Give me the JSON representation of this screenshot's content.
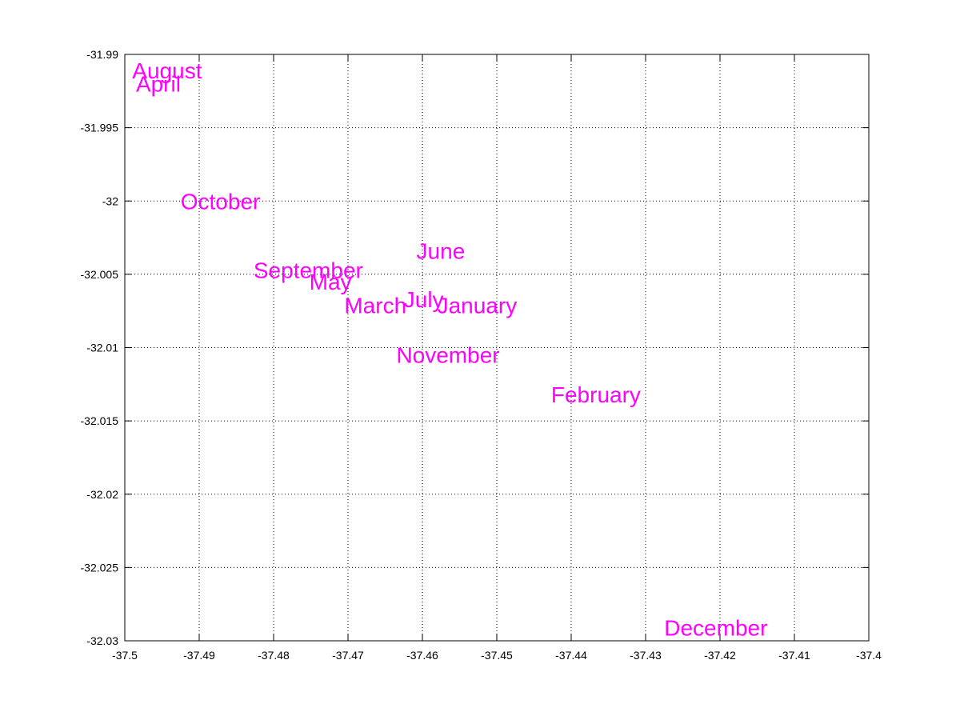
{
  "chart_data": {
    "type": "scatter",
    "title": "",
    "xlabel": "",
    "ylabel": "",
    "xlim": [
      -37.5,
      -37.4
    ],
    "ylim": [
      -32.03,
      -31.99
    ],
    "x_ticks": [
      -37.5,
      -37.49,
      -37.48,
      -37.47,
      -37.46,
      -37.45,
      -37.44,
      -37.43,
      -37.42,
      -37.41,
      -37.4
    ],
    "x_tick_labels": [
      "-37.5",
      "-37.49",
      "-37.48",
      "-37.47",
      "-37.46",
      "-37.45",
      "-37.44",
      "-37.43",
      "-37.42",
      "-37.41",
      "-37.4"
    ],
    "y_ticks": [
      -31.99,
      -31.995,
      -32,
      -32.005,
      -32.01,
      -32.015,
      -32.02,
      -32.025,
      -32.03
    ],
    "y_tick_labels": [
      "-31.99",
      "-31.995",
      "-32",
      "-32.005",
      "-32.01",
      "-32.015",
      "-32.02",
      "-32.025",
      "-32.03"
    ],
    "grid": true,
    "label_color": "#ff00ff",
    "points": [
      {
        "label": "August",
        "x": -37.499,
        "y": -31.9911
      },
      {
        "label": "April",
        "x": -37.4985,
        "y": -31.992
      },
      {
        "label": "October",
        "x": -37.4925,
        "y": -32.0
      },
      {
        "label": "June",
        "x": -37.4608,
        "y": -32.0034
      },
      {
        "label": "September",
        "x": -37.4827,
        "y": -32.0047
      },
      {
        "label": "May",
        "x": -37.4752,
        "y": -32.0055
      },
      {
        "label": "July",
        "x": -37.4625,
        "y": -32.0067
      },
      {
        "label": "March",
        "x": -37.4705,
        "y": -32.0071
      },
      {
        "label": "January",
        "x": -37.458,
        "y": -32.0071
      },
      {
        "label": "November",
        "x": -37.4635,
        "y": -32.0105
      },
      {
        "label": "February",
        "x": -37.4427,
        "y": -32.0132
      },
      {
        "label": "December",
        "x": -37.4275,
        "y": -32.0291
      }
    ]
  }
}
